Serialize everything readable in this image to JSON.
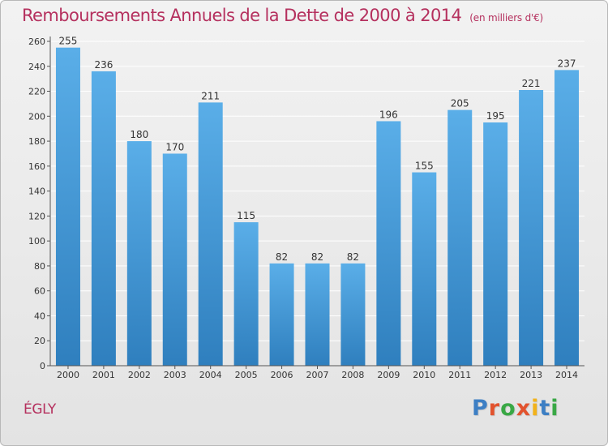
{
  "header": {
    "title": "Remboursements Annuels de la Dette de 2000 à 2014",
    "subtitle": "(en milliers d'€)"
  },
  "commune": "ÉGLY",
  "logo": {
    "text": "Proxiti",
    "letter_colors": [
      "#3d7fc4",
      "#e2532e",
      "#39a845",
      "#e2532e",
      "#f2b21a",
      "#3d7fc4",
      "#39a845"
    ]
  },
  "colors": {
    "title": "#b5305e",
    "bar_top": "#5aaee8",
    "bar_bottom": "#2f7fbe",
    "grid": "#ffffff",
    "axis": "#555555",
    "text": "#333333"
  },
  "chart_data": {
    "type": "bar",
    "categories": [
      "2000",
      "2001",
      "2002",
      "2003",
      "2004",
      "2005",
      "2006",
      "2007",
      "2008",
      "2009",
      "2010",
      "2011",
      "2012",
      "2013",
      "2014"
    ],
    "values": [
      255,
      236,
      180,
      170,
      211,
      115,
      82,
      82,
      82,
      196,
      155,
      205,
      195,
      221,
      237
    ],
    "data_labels": [
      "255",
      "236",
      "180",
      "170",
      "211",
      "115",
      "82",
      "82",
      "82",
      "196",
      "155",
      "205",
      "195",
      "221",
      "237"
    ],
    "title": "Remboursements Annuels de la Dette de 2000 à 2014",
    "subtitle": "(en milliers d'€)",
    "xlabel": "",
    "ylabel": "",
    "ylim": [
      0,
      260
    ],
    "yticks": [
      0,
      20,
      40,
      60,
      80,
      100,
      120,
      140,
      160,
      180,
      200,
      220,
      240,
      260
    ],
    "grid": true,
    "legend": "none"
  }
}
